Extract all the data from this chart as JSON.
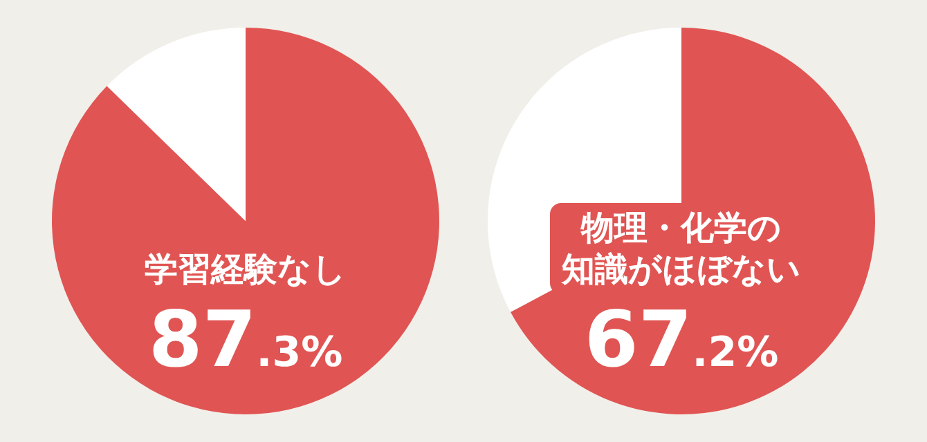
{
  "chart_data": [
    {
      "type": "pie",
      "categories": [
        "学習経験なし",
        null
      ],
      "values": [
        87.3,
        12.7
      ],
      "colors": [
        "#e05553",
        "#ffffff"
      ],
      "value_labels": [
        "87.3%",
        null
      ]
    },
    {
      "type": "pie",
      "categories": [
        "物理・化学の知識がほぼない",
        null
      ],
      "values": [
        67.2,
        32.8
      ],
      "colors": [
        "#e05553",
        "#ffffff"
      ],
      "value_labels": [
        "67.2%",
        null
      ]
    }
  ]
}
